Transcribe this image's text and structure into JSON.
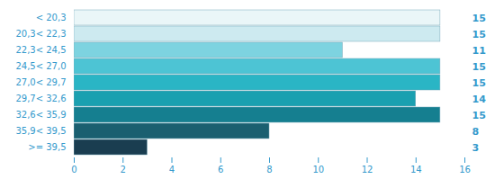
{
  "chart_data": {
    "type": "bar",
    "orientation": "horizontal",
    "categories": [
      "< 20,3",
      "20,3< 22,3",
      "22,3< 24,5",
      "24,5< 27,0",
      "27,0< 29,7",
      "29,7< 32,6",
      "32,6< 35,9",
      "35,9< 39,5",
      ">= 39,5"
    ],
    "values": [
      15,
      15,
      11,
      15,
      15,
      14,
      15,
      8,
      3
    ],
    "colors": [
      "#eaf6f8",
      "#cdeaf0",
      "#7dd3e0",
      "#4dc4d4",
      "#2ab5c5",
      "#1aa0b0",
      "#157f90",
      "#1a5f70",
      "#1a3d50"
    ],
    "xlim": [
      0,
      16
    ],
    "xticks": [
      0,
      2,
      4,
      6,
      8,
      10,
      12,
      14,
      16
    ],
    "data_labels": true
  }
}
